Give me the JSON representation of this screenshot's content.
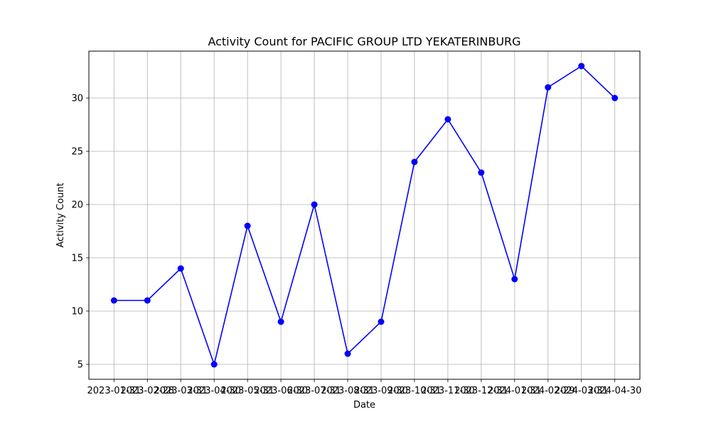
{
  "chart_data": {
    "type": "line",
    "title": "Activity Count for PACIFIC GROUP LTD YEKATERINBURG",
    "xlabel": "Date",
    "ylabel": "Activity Count",
    "x": [
      "2023-01-31",
      "2023-02-28",
      "2023-03-31",
      "2023-04-30",
      "2023-05-31",
      "2023-06-30",
      "2023-07-31",
      "2023-08-31",
      "2023-09-30",
      "2023-10-31",
      "2023-11-30",
      "2023-12-31",
      "2024-01-31",
      "2024-02-29",
      "2024-03-31",
      "2024-04-30"
    ],
    "series": [
      {
        "values": [
          11,
          11,
          14,
          5,
          18,
          9,
          20,
          6,
          9,
          24,
          28,
          23,
          13,
          31,
          33,
          30
        ],
        "color": "#0000ff"
      }
    ],
    "ylim": [
      3.6,
      34.4
    ],
    "yticks": [
      5,
      10,
      15,
      20,
      25,
      30
    ],
    "grid": true,
    "marker": "circle"
  }
}
